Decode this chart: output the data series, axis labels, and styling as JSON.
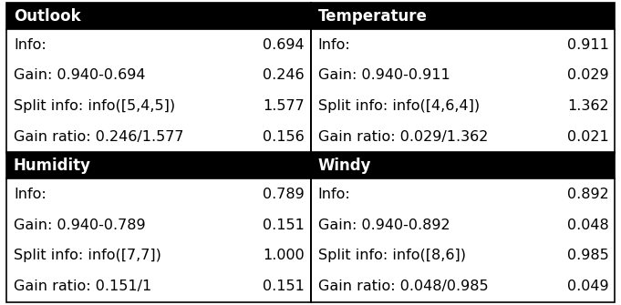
{
  "sections": [
    {
      "header": "Outlook",
      "rows": [
        [
          "Info:",
          "0.694"
        ],
        [
          "Gain: 0.940-0.694",
          "0.246"
        ],
        [
          "Split info: info([5,4,5])",
          "1.577"
        ],
        [
          "Gain ratio: 0.246/1.577",
          "0.156"
        ]
      ]
    },
    {
      "header": "Temperature",
      "rows": [
        [
          "Info:",
          "0.911"
        ],
        [
          "Gain: 0.940-0.911",
          "0.029"
        ],
        [
          "Split info: info([4,6,4])",
          "1.362"
        ],
        [
          "Gain ratio: 0.029/1.362",
          "0.021"
        ]
      ]
    },
    {
      "header": "Humidity",
      "rows": [
        [
          "Info:",
          "0.789"
        ],
        [
          "Gain: 0.940-0.789",
          "0.151"
        ],
        [
          "Split info: info([7,7])",
          "1.000"
        ],
        [
          "Gain ratio: 0.151/1",
          "0.151"
        ]
      ]
    },
    {
      "header": "Windy",
      "rows": [
        [
          "Info:",
          "0.892"
        ],
        [
          "Gain: 0.940-0.892",
          "0.048"
        ],
        [
          "Split info: info([8,6])",
          "0.985"
        ],
        [
          "Gain ratio: 0.048/0.985",
          "0.049"
        ]
      ]
    }
  ],
  "header_bg": "#000000",
  "header_fg": "#ffffff",
  "cell_bg": "#ffffff",
  "cell_fg": "#000000",
  "border_color": "#000000",
  "font_size": 11.5,
  "header_font_size": 12,
  "fig_width": 6.81,
  "fig_height": 3.35,
  "dpi": 100
}
